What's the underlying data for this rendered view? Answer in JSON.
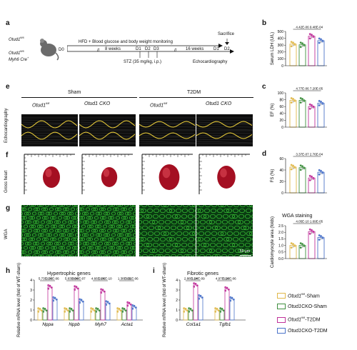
{
  "panel_a": {
    "label": "a",
    "mouse1": "Otud1",
    "mouse1_sup": "fl/fl",
    "mouse2": "Otud1",
    "mouse2_sup": "fl/fl",
    "mouse2_suffix": "Myh6 Cre",
    "mouse2_suffix_sup": "+",
    "d0": "D0",
    "hfd": "HFD + Blood glucose and body weight monitoring",
    "sacrifice": "Sacrifice",
    "t8": "8 weeks",
    "d1": "D1",
    "d2": "D2",
    "d3": "D3",
    "t16": "16 weeks",
    "d1b": "D1",
    "d2b": "D2",
    "stz": "STZ (35 mg/kg, i.p.)",
    "echo": "Echocardiography"
  },
  "panel_e": {
    "label": "e",
    "sham": "Sham",
    "t2dm": "T2DM",
    "col1": "Otud1",
    "col1_sup": "fl/fl",
    "col2": "Otud1 CKO",
    "col3": "Otud1",
    "col3_sup": "fl/fl",
    "col4": "Otud1 CKO",
    "row": "Echocardiography"
  },
  "panel_f": {
    "label": "f",
    "row": "Gross heart"
  },
  "panel_g": {
    "label": "g",
    "row": "WGA",
    "scale": "50 μm"
  },
  "panel_b": {
    "label": "b",
    "ylabel": "Serum LDH (U/L)",
    "p1": "4.42E-06",
    "p2": "9.48E-04",
    "ticks": [
      "0",
      "100",
      "200",
      "300",
      "400",
      "500"
    ]
  },
  "panel_c": {
    "label": "c",
    "ylabel": "EF (%)",
    "p1": "4.77E-06",
    "p2": "7.20E-05",
    "ticks": [
      "0",
      "20",
      "40",
      "60",
      "80",
      "100"
    ]
  },
  "panel_d": {
    "label": "d",
    "ylabel": "FS (%)",
    "p1": "3.37E-07",
    "p2": "2.76E-04",
    "ticks": [
      "0",
      "20",
      "40",
      "60"
    ]
  },
  "panel_wga": {
    "title": "WGA staining",
    "ylabel": "Cardiomyocyte area (folds)",
    "p1": "4.05E-10",
    "p2": "1.69E-05",
    "ticks": [
      "0.0",
      "0.5",
      "1.0",
      "1.5",
      "2.0",
      "2.5"
    ]
  },
  "panel_h": {
    "label": "h",
    "title": "Hypertrophic genes",
    "ylabel": "Relative mRNA level (fold of WT-sham)",
    "genes": [
      "Nppa",
      "Nppb",
      "Myh7",
      "Acta1"
    ],
    "pvals": [
      "5.73E-14",
      "2.33E-06",
      "5.83E-04",
      "8.90E-07",
      "4.66E-14",
      "2.85E-10",
      "1.38E-09",
      "3.21E-06"
    ],
    "ticks": [
      "0",
      "1",
      "2",
      "3",
      "4"
    ]
  },
  "panel_i": {
    "label": "i",
    "title": "Fibrotic genes",
    "ylabel": "Relative mRNA level (fold of WT-sham)",
    "genes": [
      "Col1a1",
      "Tgfb1"
    ],
    "pvals": [
      "2.88E-14",
      "1.24E-09",
      "4.97E-14",
      "5.20E-06"
    ],
    "ticks": [
      "0",
      "1",
      "2",
      "3",
      "4"
    ]
  },
  "legend": [
    {
      "name": "Otud1",
      "sup": "fl/fl",
      "suffix": "-Sham",
      "color": "#e0b84a"
    },
    {
      "name": "Otud1",
      "sup": "",
      "suffix": "CKO-Sham",
      "color": "#3f8f3f"
    },
    {
      "name": "Otud1",
      "sup": "fl/fl",
      "suffix": "-T2DM",
      "color": "#c0319a"
    },
    {
      "name": "Otud1",
      "sup": "",
      "suffix": "CKO-T2DM",
      "color": "#4b73c9"
    }
  ],
  "colors": {
    "yellow": "#e0b84a",
    "green": "#3f8f3f",
    "magenta": "#c0319a",
    "blue": "#4b73c9"
  },
  "chart_data": [
    {
      "type": "bar",
      "id": "b",
      "ylabel": "Serum LDH (U/L)",
      "ylim": [
        0,
        500
      ],
      "categories": [
        "Otud1fl/fl-Sham",
        "Otud1CKO-Sham",
        "Otud1fl/fl-T2DM",
        "Otud1CKO-T2DM"
      ],
      "values": [
        315,
        305,
        430,
        365
      ]
    },
    {
      "type": "bar",
      "id": "c",
      "ylabel": "EF (%)",
      "ylim": [
        0,
        100
      ],
      "categories": [
        "Otud1fl/fl-Sham",
        "Otud1CKO-Sham",
        "Otud1fl/fl-T2DM",
        "Otud1CKO-T2DM"
      ],
      "values": [
        78,
        78,
        60,
        70
      ]
    },
    {
      "type": "bar",
      "id": "d",
      "ylabel": "FS (%)",
      "ylim": [
        0,
        60
      ],
      "categories": [
        "Otud1fl/fl-Sham",
        "Otud1CKO-Sham",
        "Otud1fl/fl-T2DM",
        "Otud1CKO-T2DM"
      ],
      "values": [
        45,
        44,
        26,
        36
      ]
    },
    {
      "type": "bar",
      "id": "wga",
      "ylabel": "Cardiomyocyte area (folds)",
      "ylim": [
        0,
        2.5
      ],
      "categories": [
        "Otud1fl/fl-Sham",
        "Otud1CKO-Sham",
        "Otud1fl/fl-T2DM",
        "Otud1CKO-T2DM"
      ],
      "values": [
        1.0,
        1.0,
        2.05,
        1.6
      ]
    },
    {
      "type": "bar",
      "id": "h",
      "ylim": [
        0,
        4
      ],
      "categories": [
        "Nppa",
        "Nppb",
        "Myh7",
        "Acta1"
      ],
      "series": [
        {
          "values": [
            1.0,
            1.0,
            1.0,
            1.0
          ]
        },
        {
          "values": [
            1.0,
            1.0,
            1.0,
            1.0
          ]
        },
        {
          "values": [
            3.3,
            3.2,
            2.9,
            1.6
          ]
        },
        {
          "values": [
            2.1,
            1.9,
            1.7,
            1.3
          ]
        }
      ]
    },
    {
      "type": "bar",
      "id": "i",
      "ylim": [
        0,
        4
      ],
      "categories": [
        "Col1a1",
        "Tgfb1"
      ],
      "series": [
        {
          "values": [
            1.0,
            1.0
          ]
        },
        {
          "values": [
            1.0,
            1.0
          ]
        },
        {
          "values": [
            3.5,
            3.1
          ]
        },
        {
          "values": [
            2.3,
            2.1
          ]
        }
      ]
    }
  ]
}
